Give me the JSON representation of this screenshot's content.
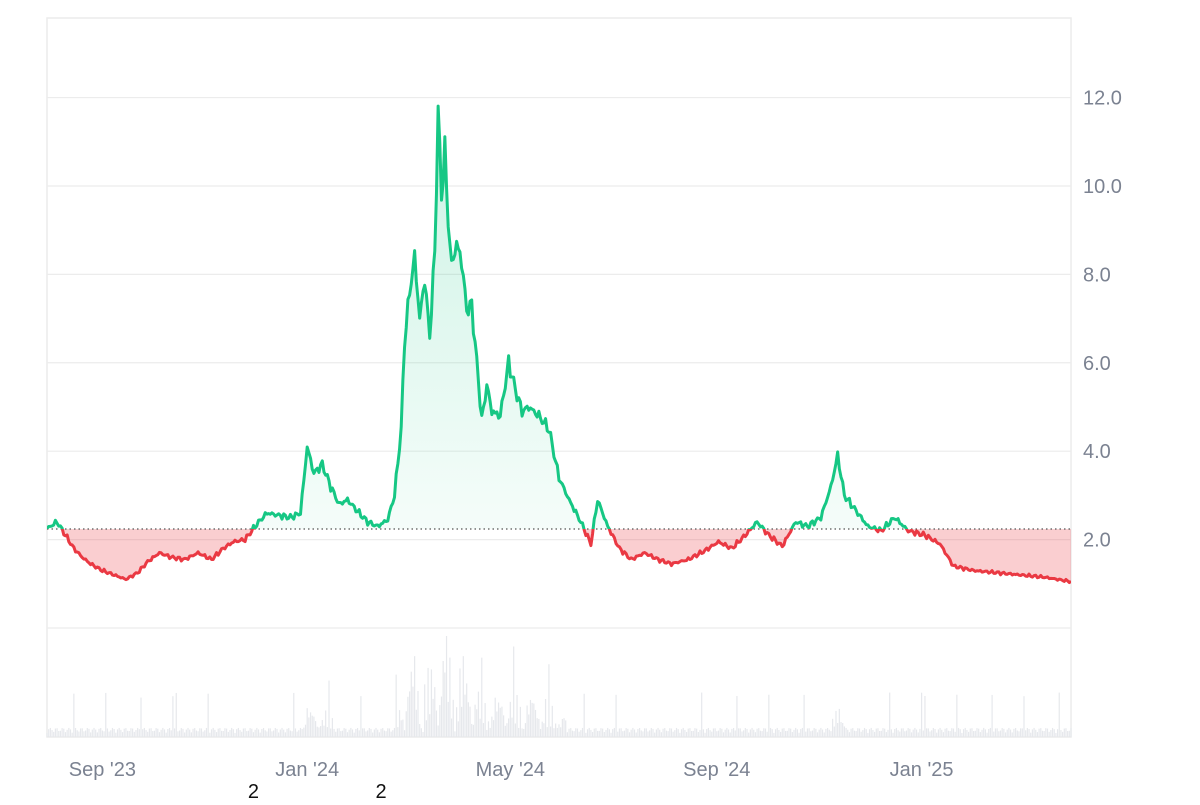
{
  "chart_data": {
    "type": "area",
    "baseline": 2.24,
    "ylim": [
      0,
      13.8
    ],
    "y_ticks": [
      2.0,
      4.0,
      6.0,
      8.0,
      10.0,
      12.0
    ],
    "y_tick_labels": [
      "2.0",
      "4.0",
      "6.0",
      "8.0",
      "10.0",
      "12.0"
    ],
    "x_range": [
      "2023-07-30",
      "2025-03-31"
    ],
    "x_ticks": [
      {
        "date": "2023-09-01",
        "label": "Sep '23"
      },
      {
        "date": "2024-01-01",
        "label": "Jan '24"
      },
      {
        "date": "2024-05-01",
        "label": "May '24"
      },
      {
        "date": "2024-09-01",
        "label": "Sep '24"
      },
      {
        "date": "2025-01-01",
        "label": "Jan '25"
      }
    ],
    "markers": [
      {
        "date": "2023-11-30",
        "label": "2"
      },
      {
        "date": "2024-02-14",
        "label": "2"
      }
    ],
    "colors": {
      "up": "#16c784",
      "down": "#ea3943",
      "up_fill": "#16c784",
      "down_fill": "#ea3943",
      "grid": "#ececec",
      "baseline": "#555555",
      "volume": "#e6e8ec"
    },
    "price": [
      [
        "2023-07-30",
        2.25
      ],
      [
        "2023-08-05",
        2.4
      ],
      [
        "2023-08-10",
        2.1
      ],
      [
        "2023-08-15",
        1.8
      ],
      [
        "2023-08-20",
        1.6
      ],
      [
        "2023-08-25",
        1.45
      ],
      [
        "2023-09-01",
        1.3
      ],
      [
        "2023-09-08",
        1.2
      ],
      [
        "2023-09-15",
        1.1
      ],
      [
        "2023-09-22",
        1.25
      ],
      [
        "2023-09-28",
        1.5
      ],
      [
        "2023-10-05",
        1.7
      ],
      [
        "2023-10-12",
        1.6
      ],
      [
        "2023-10-20",
        1.55
      ],
      [
        "2023-10-28",
        1.7
      ],
      [
        "2023-11-05",
        1.55
      ],
      [
        "2023-11-12",
        1.8
      ],
      [
        "2023-11-18",
        1.95
      ],
      [
        "2023-11-25",
        2.0
      ],
      [
        "2023-12-02",
        2.35
      ],
      [
        "2023-12-08",
        2.6
      ],
      [
        "2023-12-15",
        2.55
      ],
      [
        "2023-12-22",
        2.5
      ],
      [
        "2023-12-28",
        2.6
      ],
      [
        "2024-01-01",
        4.1
      ],
      [
        "2024-01-05",
        3.5
      ],
      [
        "2024-01-10",
        3.7
      ],
      [
        "2024-01-15",
        3.2
      ],
      [
        "2024-01-20",
        2.8
      ],
      [
        "2024-01-25",
        2.9
      ],
      [
        "2024-02-01",
        2.6
      ],
      [
        "2024-02-06",
        2.4
      ],
      [
        "2024-02-12",
        2.3
      ],
      [
        "2024-02-18",
        2.45
      ],
      [
        "2024-02-22",
        3.0
      ],
      [
        "2024-02-26",
        4.5
      ],
      [
        "2024-02-28",
        6.5
      ],
      [
        "2024-03-02",
        7.6
      ],
      [
        "2024-03-05",
        8.4
      ],
      [
        "2024-03-08",
        7.0
      ],
      [
        "2024-03-11",
        7.9
      ],
      [
        "2024-03-14",
        6.6
      ],
      [
        "2024-03-17",
        8.5
      ],
      [
        "2024-03-19",
        11.7
      ],
      [
        "2024-03-21",
        9.8
      ],
      [
        "2024-03-23",
        10.8
      ],
      [
        "2024-03-25",
        9.2
      ],
      [
        "2024-03-27",
        8.2
      ],
      [
        "2024-03-30",
        8.7
      ],
      [
        "2024-04-02",
        8.3
      ],
      [
        "2024-04-05",
        7.2
      ],
      [
        "2024-04-08",
        7.3
      ],
      [
        "2024-04-12",
        5.6
      ],
      [
        "2024-04-14",
        4.7
      ],
      [
        "2024-04-17",
        5.5
      ],
      [
        "2024-04-20",
        4.9
      ],
      [
        "2024-04-25",
        4.8
      ],
      [
        "2024-04-30",
        6.0
      ],
      [
        "2024-05-04",
        5.4
      ],
      [
        "2024-05-08",
        4.9
      ],
      [
        "2024-05-12",
        5.0
      ],
      [
        "2024-05-18",
        4.8
      ],
      [
        "2024-05-24",
        4.5
      ],
      [
        "2024-05-30",
        3.4
      ],
      [
        "2024-06-05",
        2.9
      ],
      [
        "2024-06-12",
        2.4
      ],
      [
        "2024-06-18",
        1.9
      ],
      [
        "2024-06-22",
        2.9
      ],
      [
        "2024-06-28",
        2.3
      ],
      [
        "2024-07-05",
        1.8
      ],
      [
        "2024-07-12",
        1.55
      ],
      [
        "2024-07-20",
        1.7
      ],
      [
        "2024-07-28",
        1.55
      ],
      [
        "2024-08-05",
        1.45
      ],
      [
        "2024-08-15",
        1.55
      ],
      [
        "2024-08-25",
        1.75
      ],
      [
        "2024-09-02",
        1.95
      ],
      [
        "2024-09-10",
        1.8
      ],
      [
        "2024-09-18",
        2.1
      ],
      [
        "2024-09-25",
        2.4
      ],
      [
        "2024-10-02",
        2.1
      ],
      [
        "2024-10-10",
        1.85
      ],
      [
        "2024-10-18",
        2.4
      ],
      [
        "2024-10-25",
        2.3
      ],
      [
        "2024-11-02",
        2.5
      ],
      [
        "2024-11-08",
        3.2
      ],
      [
        "2024-11-12",
        3.9
      ],
      [
        "2024-11-16",
        3.0
      ],
      [
        "2024-11-22",
        2.7
      ],
      [
        "2024-11-30",
        2.3
      ],
      [
        "2024-12-08",
        2.2
      ],
      [
        "2024-12-16",
        2.5
      ],
      [
        "2024-12-24",
        2.2
      ],
      [
        "2025-01-03",
        2.1
      ],
      [
        "2025-01-12",
        1.9
      ],
      [
        "2025-01-20",
        1.4
      ],
      [
        "2025-02-01",
        1.3
      ],
      [
        "2025-02-15",
        1.25
      ],
      [
        "2025-03-01",
        1.2
      ],
      [
        "2025-03-15",
        1.15
      ],
      [
        "2025-03-31",
        1.05
      ]
    ]
  }
}
